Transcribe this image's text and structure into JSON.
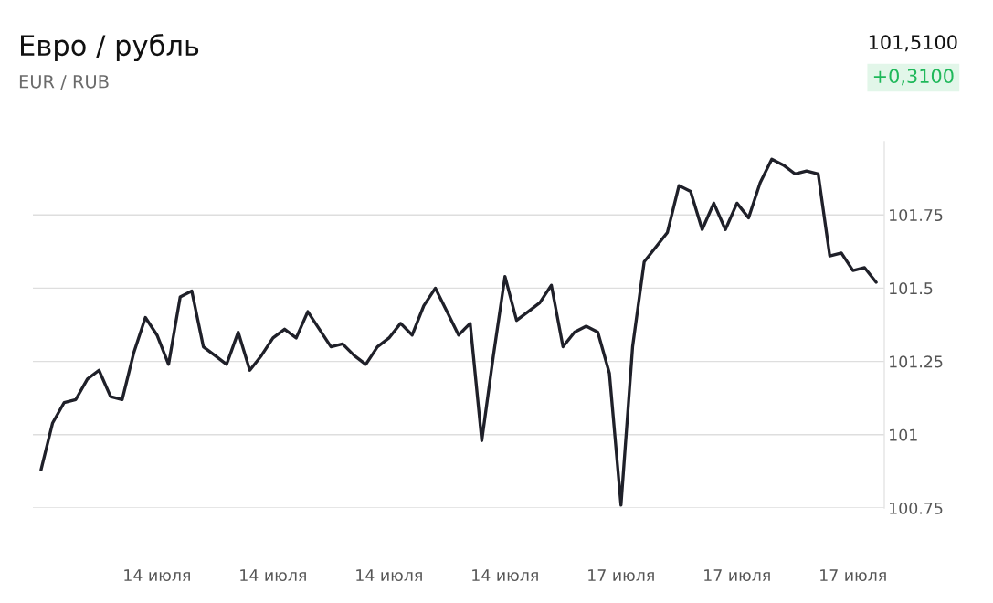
{
  "chart_data": {
    "type": "line",
    "title": "Евро / рубль",
    "subtitle": "EUR / RUB",
    "annotations": [
      "101,5100",
      "+0,3100"
    ],
    "categories": [
      null,
      null,
      null,
      null,
      null,
      null,
      null,
      null,
      null,
      null,
      "14 июля",
      null,
      null,
      null,
      null,
      null,
      null,
      null,
      null,
      null,
      "14 июля",
      null,
      null,
      null,
      null,
      null,
      null,
      null,
      null,
      null,
      "14 июля",
      null,
      null,
      null,
      null,
      null,
      null,
      null,
      null,
      null,
      "14 июля",
      null,
      null,
      null,
      null,
      null,
      null,
      null,
      null,
      null,
      "17 июля",
      null,
      null,
      null,
      null,
      null,
      null,
      null,
      null,
      null,
      "17 июля",
      null,
      null,
      null,
      null,
      null,
      null,
      null,
      null,
      null,
      "17 июля",
      null,
      null
    ],
    "series": [
      {
        "color": "#1f2029",
        "values": [
          100.88,
          101.04,
          101.11,
          101.12,
          101.19,
          101.22,
          101.13,
          101.12,
          101.28,
          101.4,
          101.34,
          101.24,
          101.47,
          101.49,
          101.3,
          101.27,
          101.24,
          101.35,
          101.22,
          101.27,
          101.33,
          101.36,
          101.33,
          101.42,
          101.36,
          101.3,
          101.31,
          101.27,
          101.24,
          101.3,
          101.33,
          101.38,
          101.34,
          101.44,
          101.5,
          101.42,
          101.34,
          101.38,
          100.98,
          101.27,
          101.54,
          101.39,
          101.42,
          101.45,
          101.51,
          101.3,
          101.35,
          101.37,
          101.35,
          101.21,
          100.76,
          101.3,
          101.59,
          101.64,
          101.69,
          101.85,
          101.83,
          101.7,
          101.79,
          101.7,
          101.79,
          101.74,
          101.86,
          101.94,
          101.92,
          101.89,
          101.9,
          101.89,
          101.61,
          101.62,
          101.56,
          101.57,
          101.52
        ]
      }
    ],
    "ylim": [
      100.75,
      102.0
    ],
    "yticks": [
      100.75,
      101,
      101.25,
      101.5,
      101.75
    ],
    "grid": "y"
  }
}
